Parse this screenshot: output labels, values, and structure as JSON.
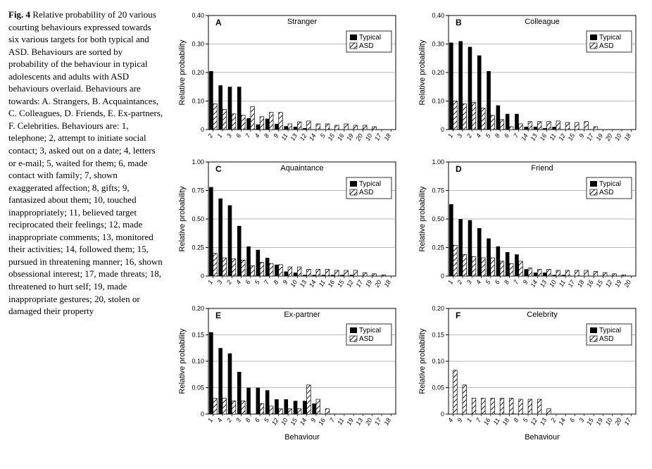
{
  "caption": {
    "label": "Fig. 4",
    "text": "Relative probability of 20 various courting behaviours expressed towards six various targets for both typical and ASD. Behaviours are sorted by probability of the behaviour in typical adolescents and adults with ASD behaviours overlaid. Behaviours are towards: A. Strangers, B. Acquaintances, C. Colleagues, D. Friends, E. Ex-partners, F. Celebrities. Behaviours are: 1, telephone; 2, attempt to initiate social contact; 3, asked out on a date; 4, letters or e-mail; 5, waited for them; 6, made contact with family; 7, shown exaggerated affection; 8, gifts; 9, fantasized about them; 10, touched inappropriately; 11, believed target reciprocated their feelings; 12, made inappropriate comments; 13, monitored their activities; 14, followed them; 15, pursued in threatening manner; 16, shown obsessional interest; 17, made threats; 18, threatened to hurt self; 19, made inappropriate gestures; 20, stolen or damaged their property"
  },
  "global": {
    "ylabel": "Relative probability",
    "xlabel": "Behaviour",
    "legend_typical": "Typical",
    "legend_asd": "ASD",
    "bar_color": "#000000",
    "hatch_fg": "#000000",
    "hatch_bg": "#ffffff",
    "grid_color": "#777777",
    "axis_color": "#000000",
    "label_fontsize": 11,
    "tick_fontsize": 9,
    "plot_bg": "#ffffff"
  },
  "panels": [
    {
      "letter": "A",
      "title": "Stranger",
      "ylim": [
        0,
        0.4
      ],
      "ytick_step": 0.1,
      "xlabel_visible": false,
      "x_order": [
        "2",
        "1",
        "3",
        "6",
        "7",
        "4",
        "8",
        "9",
        "11",
        "13",
        "12",
        "14",
        "5",
        "15",
        "16",
        "19",
        "20",
        "10",
        "17",
        "18"
      ],
      "typical": [
        0.205,
        0.155,
        0.15,
        0.15,
        0.04,
        0.018,
        0.038,
        0.02,
        0.012,
        0.01,
        0.005,
        0.0,
        0.0,
        0.0,
        0.0,
        0.0,
        0.0,
        0.0,
        0.0,
        0.0
      ],
      "asd": [
        0.09,
        0.07,
        0.055,
        0.05,
        0.08,
        0.045,
        0.06,
        0.06,
        0.02,
        0.027,
        0.03,
        0.02,
        0.02,
        0.015,
        0.02,
        0.015,
        0.015,
        0.01,
        0.0,
        0.0
      ]
    },
    {
      "letter": "B",
      "title": "Colleague",
      "ylim": [
        0,
        0.4
      ],
      "ytick_step": 0.1,
      "xlabel_visible": false,
      "x_order": [
        "1",
        "3",
        "2",
        "4",
        "5",
        "8",
        "6",
        "7",
        "14",
        "13",
        "16",
        "11",
        "12",
        "15",
        "9",
        "17",
        "19",
        "20",
        "10",
        "18"
      ],
      "typical": [
        0.305,
        0.31,
        0.29,
        0.26,
        0.205,
        0.085,
        0.055,
        0.055,
        0.01,
        0.01,
        0.005,
        0.01,
        0.0,
        0.0,
        0.0,
        0.0,
        0.0,
        0.0,
        0.0,
        0.0
      ],
      "asd": [
        0.1,
        0.09,
        0.095,
        0.075,
        0.05,
        0.035,
        0.01,
        0.02,
        0.028,
        0.028,
        0.028,
        0.03,
        0.025,
        0.025,
        0.028,
        0.01,
        0.0,
        0.0,
        0.0,
        0.0
      ]
    },
    {
      "letter": "C",
      "title": "Aquaintance",
      "ylim": [
        0,
        1.0
      ],
      "ytick_step": 0.25,
      "xlabel_visible": false,
      "x_order": [
        "1",
        "3",
        "2",
        "4",
        "6",
        "5",
        "7",
        "8",
        "9",
        "10",
        "13",
        "14",
        "11",
        "16",
        "15",
        "12",
        "17",
        "19",
        "20",
        "18"
      ],
      "typical": [
        0.78,
        0.68,
        0.62,
        0.44,
        0.26,
        0.23,
        0.16,
        0.1,
        0.04,
        0.03,
        0.01,
        0.01,
        0.01,
        0.01,
        0.01,
        0.01,
        0.0,
        0.0,
        0.0,
        0.0
      ],
      "asd": [
        0.2,
        0.16,
        0.15,
        0.14,
        0.09,
        0.12,
        0.11,
        0.1,
        0.08,
        0.08,
        0.06,
        0.06,
        0.06,
        0.05,
        0.05,
        0.05,
        0.03,
        0.02,
        0.01,
        0.0
      ]
    },
    {
      "letter": "D",
      "title": "Friend",
      "ylim": [
        0,
        1.0
      ],
      "ytick_step": 0.25,
      "xlabel_visible": false,
      "x_order": [
        "1",
        "2",
        "3",
        "4",
        "5",
        "6",
        "8",
        "7",
        "9",
        "14",
        "13",
        "10",
        "11",
        "17",
        "18",
        "16",
        "15",
        "12",
        "19",
        "20"
      ],
      "typical": [
        0.63,
        0.5,
        0.49,
        0.42,
        0.33,
        0.26,
        0.21,
        0.19,
        0.06,
        0.03,
        0.03,
        0.01,
        0.01,
        0.0,
        0.0,
        0.0,
        0.0,
        0.0,
        0.0,
        0.0
      ],
      "asd": [
        0.27,
        0.19,
        0.17,
        0.16,
        0.16,
        0.13,
        0.11,
        0.13,
        0.07,
        0.06,
        0.06,
        0.05,
        0.05,
        0.05,
        0.05,
        0.04,
        0.03,
        0.02,
        0.01,
        0.0
      ]
    },
    {
      "letter": "E",
      "title": "Ex-partner",
      "ylim": [
        0,
        0.2
      ],
      "ytick_step": 0.05,
      "xlabel_visible": true,
      "x_order": [
        "1",
        "4",
        "2",
        "3",
        "8",
        "6",
        "5",
        "12",
        "10",
        "15",
        "14",
        "9",
        "16",
        "7",
        "11",
        "19",
        "13",
        "20",
        "17",
        "18"
      ],
      "typical": [
        0.155,
        0.125,
        0.115,
        0.08,
        0.05,
        0.05,
        0.045,
        0.028,
        0.028,
        0.025,
        0.025,
        0.02,
        0.0,
        0.0,
        0.0,
        0.0,
        0.0,
        0.0,
        0.0,
        0.0
      ],
      "asd": [
        0.03,
        0.03,
        0.025,
        0.025,
        0.0,
        0.02,
        0.015,
        0.01,
        0.01,
        0.01,
        0.055,
        0.028,
        0.01,
        0.0,
        0.0,
        0.0,
        0.0,
        0.0,
        0.0,
        0.0
      ]
    },
    {
      "letter": "F",
      "title": "Celebrity",
      "ylim": [
        0,
        0.2
      ],
      "ytick_step": 0.05,
      "xlabel_visible": true,
      "x_order": [
        "4",
        "9",
        "1",
        "7",
        "16",
        "11",
        "18",
        "8",
        "5",
        "12",
        "13",
        "2",
        "14",
        "6",
        "3",
        "15",
        "19",
        "10",
        "20",
        "17"
      ],
      "typical": [
        0.0,
        0.0,
        0.0,
        0.0,
        0.0,
        0.0,
        0.0,
        0.0,
        0.0,
        0.0,
        0.0,
        0.0,
        0.0,
        0.0,
        0.0,
        0.0,
        0.0,
        0.0,
        0.0,
        0.0
      ],
      "asd": [
        0.083,
        0.055,
        0.03,
        0.03,
        0.03,
        0.03,
        0.03,
        0.028,
        0.028,
        0.028,
        0.01,
        0.0,
        0.0,
        0.0,
        0.0,
        0.0,
        0.0,
        0.0,
        0.0,
        0.0
      ]
    }
  ]
}
